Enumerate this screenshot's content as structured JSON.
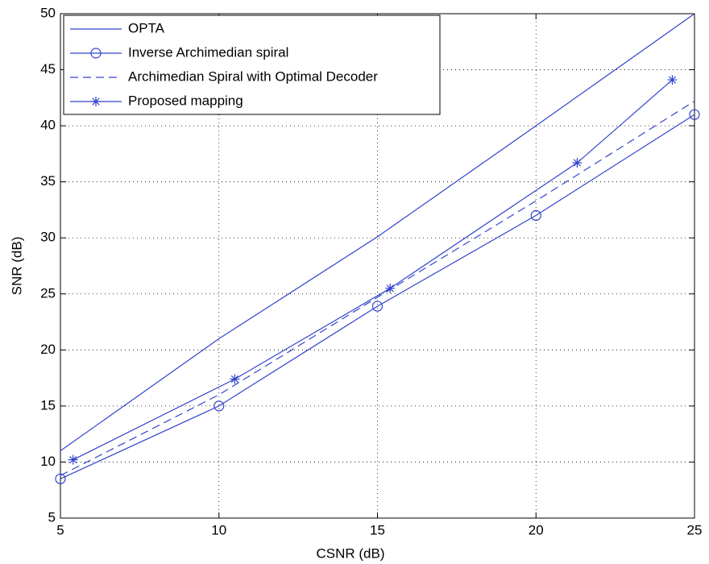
{
  "chart_data": {
    "type": "line",
    "xlabel": "CSNR (dB)",
    "ylabel": "SNR (dB)",
    "xlim": [
      5,
      25
    ],
    "ylim": [
      5,
      50
    ],
    "xticks": [
      5,
      10,
      15,
      20,
      25
    ],
    "yticks": [
      5,
      10,
      15,
      20,
      25,
      30,
      35,
      40,
      45,
      50
    ],
    "grid": true,
    "legend_position": "northwest",
    "series": [
      {
        "name": "OPTA",
        "color": "#3344cc",
        "line_style": "solid",
        "marker": "none",
        "x": [
          5,
          10,
          15,
          20,
          25
        ],
        "values": [
          11,
          21,
          30.1,
          40,
          50
        ]
      },
      {
        "name": "Inverse Archimedian spiral",
        "color": "#3344cc",
        "line_style": "solid",
        "marker": "circle",
        "x": [
          5,
          10,
          15,
          20,
          25
        ],
        "values": [
          8.5,
          15,
          23.9,
          32,
          41
        ]
      },
      {
        "name": "Archimedian Spiral with Optimal Decoder",
        "color": "#3344cc",
        "line_style": "dashed",
        "marker": "none",
        "x": [
          5,
          10,
          15,
          20,
          25
        ],
        "values": [
          8.8,
          16,
          24.7,
          33.3,
          42.2
        ]
      },
      {
        "name": "Proposed mapping",
        "color": "#3344cc",
        "line_style": "solid",
        "marker": "star",
        "x": [
          5.4,
          10.5,
          15.4,
          21.3,
          24.3
        ],
        "values": [
          10.2,
          17.4,
          25.5,
          36.7,
          44.1
        ]
      }
    ]
  }
}
